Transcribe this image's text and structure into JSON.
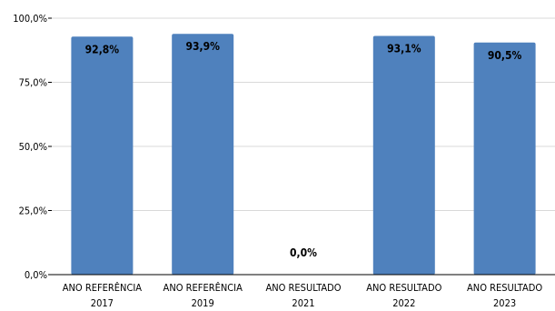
{
  "chart_data": {
    "type": "bar",
    "categories": [
      [
        "ANO REFERÊNCIA",
        "2017"
      ],
      [
        "ANO REFERÊNCIA",
        "2019"
      ],
      [
        "ANO RESULTADO",
        "2021"
      ],
      [
        "ANO RESULTADO",
        "2022"
      ],
      [
        "ANO RESULTADO",
        "2023"
      ]
    ],
    "values": [
      92.8,
      93.9,
      0.0,
      93.1,
      90.5
    ],
    "data_labels": [
      "92,8%",
      "93,9%",
      "0,0%",
      "93,1%",
      "90,5%"
    ],
    "yticks": [
      "0,0%",
      "25,0%",
      "50,0%",
      "75,0%",
      "100,0%"
    ],
    "ylim": [
      0,
      100
    ],
    "grid": true,
    "bar_color": "#4f81bd",
    "grid_color": "#d9d9d9"
  }
}
